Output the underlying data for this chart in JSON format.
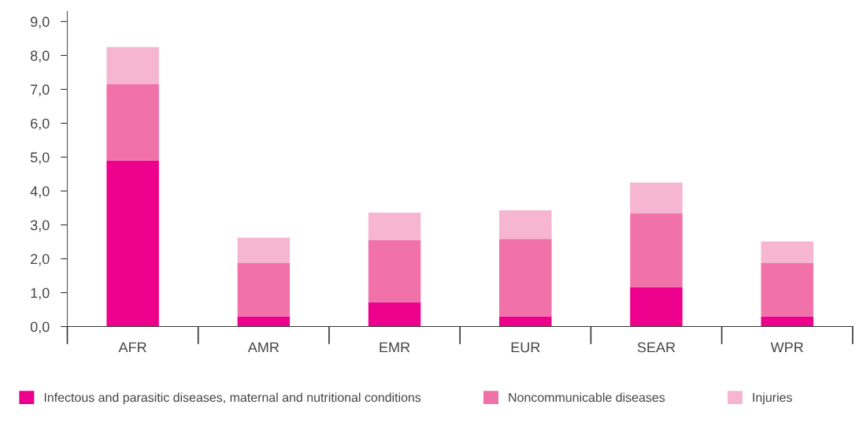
{
  "chart_data": {
    "type": "bar",
    "stacked": true,
    "categories": [
      "AFR",
      "AMR",
      "EMR",
      "EUR",
      "SEAR",
      "WPR"
    ],
    "series": [
      {
        "name": "Infectous and parasitic diseases, maternal and nutritional conditions",
        "color": "#ec008c",
        "values": [
          4.9,
          0.3,
          0.72,
          0.3,
          1.15,
          0.3
        ]
      },
      {
        "name": "Noncommunicable diseases",
        "color": "#f072a9",
        "values": [
          2.25,
          1.57,
          1.83,
          2.29,
          2.2,
          1.57
        ]
      },
      {
        "name": "Injuries",
        "color": "#f6b5d1",
        "values": [
          1.1,
          0.75,
          0.81,
          0.84,
          0.9,
          0.64
        ]
      }
    ],
    "ylim": [
      0,
      9.3
    ],
    "yticks": [
      {
        "value": 0,
        "label": "0,0"
      },
      {
        "value": 1,
        "label": "1,0"
      },
      {
        "value": 2,
        "label": "2,0"
      },
      {
        "value": 3,
        "label": "3,0"
      },
      {
        "value": 4,
        "label": "4,0"
      },
      {
        "value": 5,
        "label": "5,0"
      },
      {
        "value": 6,
        "label": "6,0"
      },
      {
        "value": 7,
        "label": "7,0"
      },
      {
        "value": 8,
        "label": "8,0"
      },
      {
        "value": 9,
        "label": "9,0"
      }
    ],
    "grid": false,
    "legend": "bottom"
  }
}
